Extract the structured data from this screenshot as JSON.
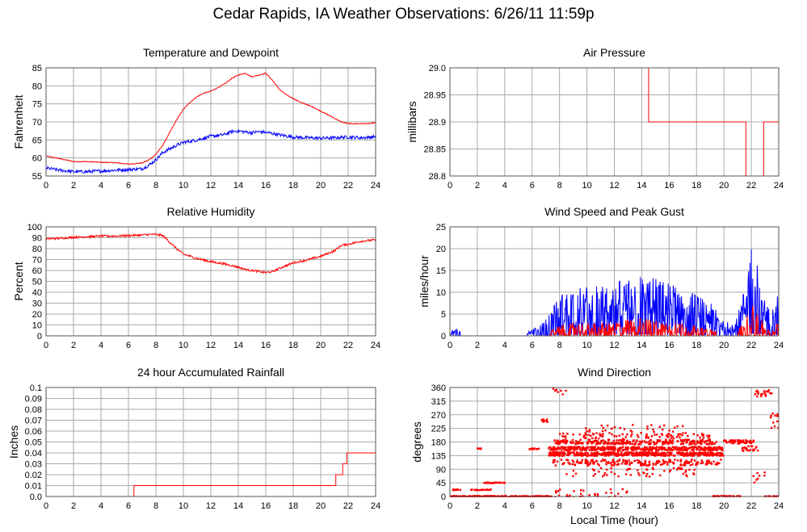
{
  "title": "Cedar Rapids, IA Weather Observations: 6/26/11 11:59p",
  "colors": {
    "red": "#ff0000",
    "blue": "#0000ff",
    "grid": "#aaaaaa",
    "frame": "#555555"
  },
  "chart_data": [
    {
      "id": "temperature",
      "type": "line",
      "title": "Temperature and Dewpoint",
      "xlabel": "",
      "ylabel": "Fahrenheit",
      "xlim": [
        0,
        24
      ],
      "ylim": [
        55,
        85
      ],
      "xticks": [
        0,
        2,
        4,
        6,
        8,
        10,
        12,
        14,
        16,
        18,
        20,
        22,
        24
      ],
      "yticks": [
        55,
        60,
        65,
        70,
        75,
        80,
        85
      ],
      "grid": true,
      "series": [
        {
          "color": "#ff0000",
          "noise": 0.12,
          "x": [
            0,
            1,
            2,
            3,
            4,
            5,
            6,
            7,
            7.5,
            8,
            8.5,
            9,
            9.5,
            10,
            10.5,
            11,
            11.5,
            12,
            12.5,
            13,
            13.5,
            14,
            14.5,
            15,
            15.5,
            16,
            16.5,
            17,
            17.5,
            18,
            18.5,
            19,
            19.5,
            20,
            20.5,
            21,
            21.5,
            22,
            22.5,
            23,
            23.5,
            24
          ],
          "y": [
            60.5,
            59.8,
            59,
            59,
            58.8,
            58.7,
            58.3,
            58.6,
            59.5,
            61,
            63.5,
            67,
            70.5,
            73.5,
            75.5,
            77,
            78,
            78.5,
            79.5,
            80.5,
            82,
            83,
            83.5,
            82.5,
            83,
            83.5,
            81.5,
            79,
            77.5,
            76.5,
            75.5,
            74.8,
            74,
            73,
            72,
            71,
            70,
            69.5,
            69.5,
            69.5,
            69.5,
            69.8
          ]
        },
        {
          "color": "#0000ff",
          "noise": 0.45,
          "x": [
            0,
            1,
            2,
            3,
            4,
            5,
            6,
            7,
            7.5,
            8,
            8.5,
            9,
            9.5,
            10,
            11,
            12,
            13,
            13.5,
            14,
            14.5,
            15,
            15.5,
            16,
            16.5,
            17,
            18,
            19,
            20,
            21,
            22,
            23,
            24
          ],
          "y": [
            57.2,
            56.6,
            56.2,
            56.2,
            56.4,
            56.6,
            56.8,
            57,
            58,
            59.5,
            61.5,
            62.5,
            63.5,
            64.3,
            65,
            66,
            66.5,
            67.3,
            67.5,
            67.2,
            67,
            67.3,
            67.1,
            66.8,
            66.4,
            65.8,
            65.6,
            65.5,
            65.6,
            65.8,
            65.6,
            65.9
          ]
        }
      ]
    },
    {
      "id": "pressure",
      "type": "line",
      "title": "Air Pressure",
      "xlabel": "",
      "ylabel": "millibars",
      "xlim": [
        0,
        24
      ],
      "ylim": [
        28.8,
        29.0
      ],
      "xticks": [
        0,
        2,
        4,
        6,
        8,
        10,
        12,
        14,
        16,
        18,
        20,
        22,
        24
      ],
      "yticks": [
        28.8,
        28.85,
        28.9,
        28.95,
        29.0
      ],
      "yticklabels": [
        "28.8",
        "28.85",
        "28.9",
        "28.95",
        "29.0"
      ],
      "grid": true,
      "series": [
        {
          "color": "#ff0000",
          "step": true,
          "x": [
            0,
            14.5,
            14.5,
            21.6,
            21.6,
            22.9,
            22.9,
            24
          ],
          "y": [
            29.0,
            29.0,
            28.9,
            28.9,
            28.8,
            28.8,
            28.9,
            28.9
          ]
        }
      ]
    },
    {
      "id": "humidity",
      "type": "line",
      "title": "Relative Humidity",
      "xlabel": "",
      "ylabel": "Percent",
      "xlim": [
        0,
        24
      ],
      "ylim": [
        0,
        100
      ],
      "xticks": [
        0,
        2,
        4,
        6,
        8,
        10,
        12,
        14,
        16,
        18,
        20,
        22,
        24
      ],
      "yticks": [
        0,
        10,
        20,
        30,
        40,
        50,
        60,
        70,
        80,
        90,
        100
      ],
      "grid": true,
      "series": [
        {
          "color": "#ff0000",
          "noise": 1.0,
          "x": [
            0,
            1,
            2,
            3,
            4,
            5,
            6,
            7,
            7.5,
            8,
            8.5,
            9,
            9.5,
            10,
            11,
            12,
            13,
            14,
            14.5,
            15,
            15.5,
            16,
            16.5,
            17,
            18,
            19,
            20,
            21,
            21.5,
            22,
            23,
            24
          ],
          "y": [
            89,
            89.5,
            90.5,
            91,
            91.5,
            91.5,
            92,
            92.5,
            93,
            93,
            92,
            86,
            80,
            75,
            71,
            68,
            66,
            63,
            61,
            60,
            59,
            58,
            59,
            62,
            67,
            69.5,
            73,
            78,
            83,
            84,
            87,
            88
          ]
        }
      ]
    },
    {
      "id": "wind_speed",
      "type": "line",
      "title": "Wind Speed and Peak Gust",
      "xlabel": "",
      "ylabel": "miles/hour",
      "xlim": [
        0,
        24
      ],
      "ylim": [
        0,
        25
      ],
      "xticks": [
        0,
        2,
        4,
        6,
        8,
        10,
        12,
        14,
        16,
        18,
        20,
        22,
        24
      ],
      "yticks": [
        0,
        5,
        10,
        15,
        20,
        25
      ],
      "grid": true,
      "series": [
        {
          "color": "#0000ff",
          "spiky": true,
          "x": [
            0,
            0.5,
            1,
            2,
            3,
            4,
            5,
            6,
            6.5,
            7,
            7.5,
            8,
            9,
            10,
            11,
            12,
            13,
            14,
            15,
            16,
            17,
            18,
            19,
            20,
            20.5,
            21,
            21.5,
            22,
            22.5,
            23,
            23.5,
            24
          ],
          "y": [
            0.5,
            1,
            0.2,
            0.3,
            0.3,
            0.2,
            0.3,
            0.8,
            1.2,
            2,
            3.5,
            5,
            6,
            6,
            6,
            6.5,
            7,
            7.5,
            7,
            6.5,
            6,
            5,
            4,
            2,
            1.5,
            2.5,
            6,
            12,
            10,
            4,
            3,
            6
          ]
        },
        {
          "color": "#ff0000",
          "spiky": true,
          "x": [
            0,
            6,
            7,
            7.5,
            8,
            9,
            10,
            11,
            12,
            13,
            14,
            15,
            16,
            17,
            18,
            19,
            20,
            20.5,
            21,
            21.5,
            22,
            22.5,
            23,
            23.5,
            24
          ],
          "y": [
            0,
            0,
            0.3,
            0.8,
            1.2,
            1.6,
            1.6,
            1.6,
            1.8,
            2,
            2.2,
            2,
            1.8,
            1.6,
            1.2,
            0.8,
            0.3,
            0.2,
            0.6,
            2,
            4,
            3,
            1,
            0.5,
            2
          ]
        }
      ]
    },
    {
      "id": "rainfall",
      "type": "line",
      "title": "24 hour Accumulated Rainfall",
      "xlabel": "",
      "ylabel": "Inches",
      "xlim": [
        0,
        24
      ],
      "ylim": [
        0,
        0.1
      ],
      "xticks": [
        0,
        2,
        4,
        6,
        8,
        10,
        12,
        14,
        16,
        18,
        20,
        22,
        24
      ],
      "yticks": [
        0,
        0.01,
        0.02,
        0.03,
        0.04,
        0.05,
        0.06,
        0.07,
        0.08,
        0.09,
        0.1
      ],
      "yticklabels": [
        "0.0",
        "0.01",
        "0.02",
        "0.03",
        "0.04",
        "0.05",
        "0.06",
        "0.07",
        "0.08",
        "0.09",
        "0.1"
      ],
      "grid": true,
      "series": [
        {
          "color": "#ff0000",
          "step": true,
          "x": [
            0,
            6.4,
            6.4,
            21.1,
            21.1,
            21.6,
            21.6,
            21.9,
            21.9,
            22.1,
            22.1,
            24
          ],
          "y": [
            0,
            0,
            0.01,
            0.01,
            0.02,
            0.02,
            0.03,
            0.03,
            0.04,
            0.04,
            0.04,
            0.04
          ]
        }
      ]
    },
    {
      "id": "wind_direction",
      "type": "scatter",
      "title": "Wind Direction",
      "xlabel": "Local Time (hour)",
      "ylabel": "degrees",
      "xlim": [
        0,
        24
      ],
      "ylim": [
        0,
        360
      ],
      "xticks": [
        0,
        2,
        4,
        6,
        8,
        10,
        12,
        14,
        16,
        18,
        20,
        22,
        24
      ],
      "yticks": [
        0,
        45,
        90,
        135,
        180,
        225,
        270,
        315,
        360
      ],
      "grid": true,
      "series": [
        {
          "color": "#ff0000",
          "bands": [
            {
              "x0": 0,
              "x1": 7.4,
              "y": 0,
              "jitter": 2,
              "density": 8
            },
            {
              "x0": 0.2,
              "x1": 0.8,
              "y": 22,
              "jitter": 1,
              "density": 6
            },
            {
              "x0": 2.0,
              "x1": 2.3,
              "y": 158,
              "jitter": 1,
              "density": 4
            },
            {
              "x0": 2.5,
              "x1": 4.2,
              "y": 45,
              "jitter": 1,
              "density": 4
            },
            {
              "x0": 1.5,
              "x1": 3.0,
              "y": 22,
              "jitter": 1,
              "density": 3
            },
            {
              "x0": 5.8,
              "x1": 6.5,
              "y": 158,
              "jitter": 2,
              "density": 4
            },
            {
              "x0": 6.6,
              "x1": 7.2,
              "y": 250,
              "jitter": 5,
              "density": 4
            },
            {
              "x0": 7.2,
              "x1": 20,
              "y": 140,
              "jitter": 6,
              "density": 9
            },
            {
              "x0": 7.2,
              "x1": 20,
              "y": 158,
              "jitter": 6,
              "density": 8
            },
            {
              "x0": 7.6,
              "x1": 19.5,
              "y": 180,
              "jitter": 8,
              "density": 5
            },
            {
              "x0": 7.5,
              "x1": 19.8,
              "y": 112,
              "jitter": 10,
              "density": 4
            },
            {
              "x0": 8,
              "x1": 19,
              "y": 200,
              "jitter": 10,
              "density": 2
            },
            {
              "x0": 8.5,
              "x1": 18,
              "y": 80,
              "jitter": 15,
              "density": 1.5
            },
            {
              "x0": 9.5,
              "x1": 17,
              "y": 225,
              "jitter": 12,
              "density": 1
            },
            {
              "x0": 7.5,
              "x1": 8.5,
              "y": 350,
              "jitter": 15,
              "density": 2
            },
            {
              "x0": 7.5,
              "x1": 13,
              "y": 10,
              "jitter": 15,
              "density": 1.5
            },
            {
              "x0": 19.2,
              "x1": 21.2,
              "y": 0,
              "jitter": 2,
              "density": 6
            },
            {
              "x0": 20,
              "x1": 22.2,
              "y": 180,
              "jitter": 6,
              "density": 6
            },
            {
              "x0": 21.2,
              "x1": 22.5,
              "y": 158,
              "jitter": 8,
              "density": 4
            },
            {
              "x0": 22.2,
              "x1": 23.5,
              "y": 340,
              "jitter": 12,
              "density": 4
            },
            {
              "x0": 23,
              "x1": 24,
              "y": 0,
              "jitter": 2,
              "density": 4
            },
            {
              "x0": 23.4,
              "x1": 24,
              "y": 250,
              "jitter": 25,
              "density": 5
            },
            {
              "x0": 22,
              "x1": 23,
              "y": 60,
              "jitter": 20,
              "density": 2
            }
          ]
        }
      ]
    }
  ]
}
